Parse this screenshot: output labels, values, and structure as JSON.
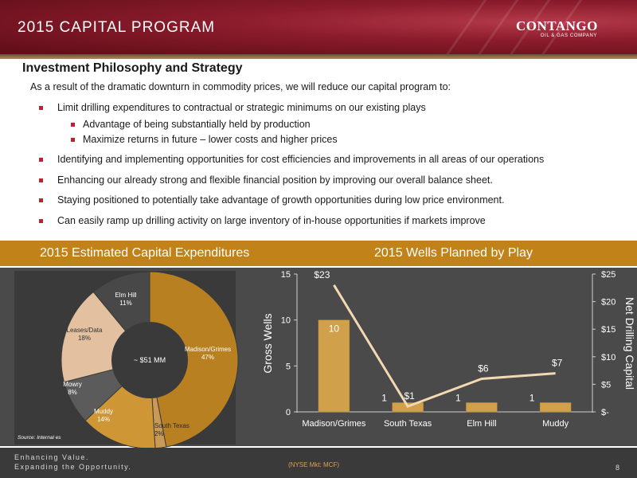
{
  "header": {
    "title": "2015 CAPITAL PROGRAM",
    "logo_main": "CONTANGO",
    "logo_sub": "OIL & GAS COMPANY"
  },
  "content": {
    "heading": "Investment Philosophy and Strategy",
    "intro": "As a result of the dramatic downturn in commodity prices, we will reduce our capital program to:",
    "bullets": [
      "Limit drilling expenditures to contractual or strategic minimums on our existing plays",
      "Advantage of being substantially held by production",
      "Maximize returns in future – lower costs and higher prices",
      "Identifying and implementing opportunities for cost efficiencies and improvements in all areas of our operations",
      "Enhancing our already strong and flexible financial position by improving our overall balance sheet.",
      "Staying positioned to potentially take advantage of growth opportunities during low price environment.",
      "Can easily ramp up drilling activity on large inventory of in-house opportunities if markets improve"
    ]
  },
  "band": {
    "left_title": "2015 Estimated Capital Expenditures",
    "right_title": "2015 Wells Planned by Play"
  },
  "source": "Source: Internal es",
  "footer": {
    "tagline1": "Enhancing Value.",
    "tagline2": "Expanding the Opportunity.",
    "ticker": "(NYSE Mkt: MCF)",
    "page": "8"
  },
  "colors": {
    "accent_red": "#c0212f",
    "band_gold": "#c18219",
    "bar_fill": "#d1a04b",
    "line": "#f2d9b3"
  },
  "chart_data": [
    {
      "type": "pie",
      "variant": "donut",
      "center_label": "~ $51 MM",
      "slices": [
        {
          "name": "Madison/Grimes",
          "pct_label": "47%",
          "value": 47,
          "color": "#b98022"
        },
        {
          "name": "South Texas",
          "pct_label": "2%",
          "value": 2,
          "color": "#c99a55"
        },
        {
          "name": "Muddy",
          "pct_label": "14%",
          "value": 14,
          "color": "#cf9636"
        },
        {
          "name": "Mowry",
          "pct_label": "8%",
          "value": 8,
          "color": "#5b5b5b"
        },
        {
          "name": "Leases/Data",
          "pct_label": "18%",
          "value": 18,
          "color": "#e2c0a0"
        },
        {
          "name": "Elm Hill",
          "pct_label": "11%",
          "value": 11,
          "color": "#484848"
        }
      ]
    },
    {
      "type": "bar",
      "categories": [
        "Madison/Grimes",
        "South Texas",
        "Elm Hill",
        "Muddy"
      ],
      "series": [
        {
          "type": "bar",
          "axis": "left",
          "values": [
            10,
            1,
            1,
            1
          ],
          "labels": [
            "10",
            "1",
            "1",
            "1"
          ]
        },
        {
          "type": "line",
          "axis": "right",
          "values": [
            23,
            1,
            6,
            7
          ],
          "labels": [
            "$23",
            "$1",
            "$6",
            "$7"
          ]
        }
      ],
      "ylabel": "Gross Wells",
      "ylabel_right": "Net Drilling Capital",
      "ylim": [
        0,
        15
      ],
      "yticks": [
        "0",
        "5",
        "10",
        "15"
      ],
      "ylim_right": [
        0,
        25
      ],
      "yticks_right": [
        "$-",
        "$5",
        "$10",
        "$15",
        "$20",
        "$25"
      ],
      "grid": false
    }
  ]
}
